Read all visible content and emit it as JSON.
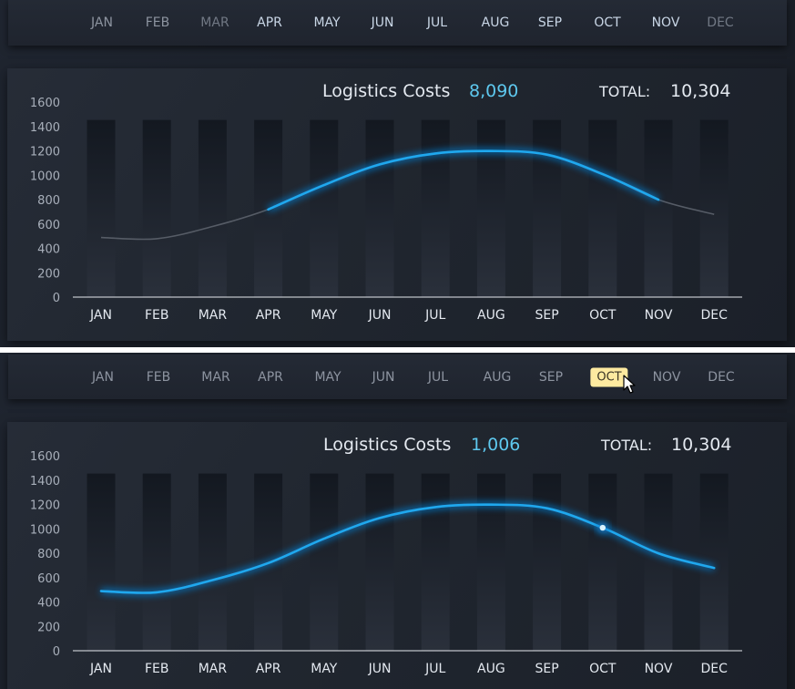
{
  "months": [
    "JAN",
    "FEB",
    "MAR",
    "APR",
    "MAY",
    "JUN",
    "JUL",
    "AUG",
    "SEP",
    "OCT",
    "NOV",
    "DEC"
  ],
  "colors": {
    "line": "#1fa8ee",
    "line_glow": "#0a7fd1",
    "line_inactive": "#565c66",
    "value": "#5ec8ee",
    "highlight_bg": "#fdeaa0"
  },
  "top_panel": {
    "slicer": {
      "highlighted": [
        "APR",
        "MAY",
        "JUN",
        "JUL",
        "AUG",
        "SEP",
        "OCT",
        "NOV"
      ],
      "dimmed": [
        "MAR",
        "DEC"
      ]
    },
    "title_label": "Logistics Costs",
    "title_value": "8,090",
    "total_label": "TOTAL:",
    "total_value": "10,304",
    "highlight_range": [
      "APR",
      "NOV"
    ]
  },
  "bottom_panel": {
    "slicer": {
      "selected": "OCT"
    },
    "title_label": "Logistics Costs",
    "title_value": "1,006",
    "total_label": "TOTAL:",
    "total_value": "10,304",
    "marker": "OCT",
    "cursor": "arrow-cursor-icon"
  },
  "chart_data": [
    {
      "type": "line",
      "x": [
        "JAN",
        "FEB",
        "MAR",
        "APR",
        "MAY",
        "JUN",
        "JUL",
        "AUG",
        "SEP",
        "OCT",
        "NOV",
        "DEC"
      ],
      "series": [
        {
          "values": [
            490,
            480,
            580,
            720,
            920,
            1090,
            1180,
            1200,
            1170,
            1010,
            800,
            680
          ]
        }
      ],
      "ylim": [
        0,
        1600
      ],
      "yticks": [
        0,
        200,
        400,
        600,
        800,
        1000,
        1200,
        1400,
        1600
      ],
      "highlighted": [
        "APR",
        "MAY",
        "JUN",
        "JUL",
        "AUG",
        "SEP",
        "OCT",
        "NOV"
      ],
      "grid": false,
      "legend": "none"
    },
    {
      "type": "line",
      "x": [
        "JAN",
        "FEB",
        "MAR",
        "APR",
        "MAY",
        "JUN",
        "JUL",
        "AUG",
        "SEP",
        "OCT",
        "NOV",
        "DEC"
      ],
      "series": [
        {
          "values": [
            490,
            480,
            580,
            720,
            920,
            1090,
            1180,
            1200,
            1170,
            1010,
            800,
            680
          ]
        }
      ],
      "ylim": [
        0,
        1600
      ],
      "yticks": [
        0,
        200,
        400,
        600,
        800,
        1000,
        1200,
        1400,
        1600
      ],
      "marker": "OCT",
      "grid": false,
      "legend": "none"
    }
  ]
}
